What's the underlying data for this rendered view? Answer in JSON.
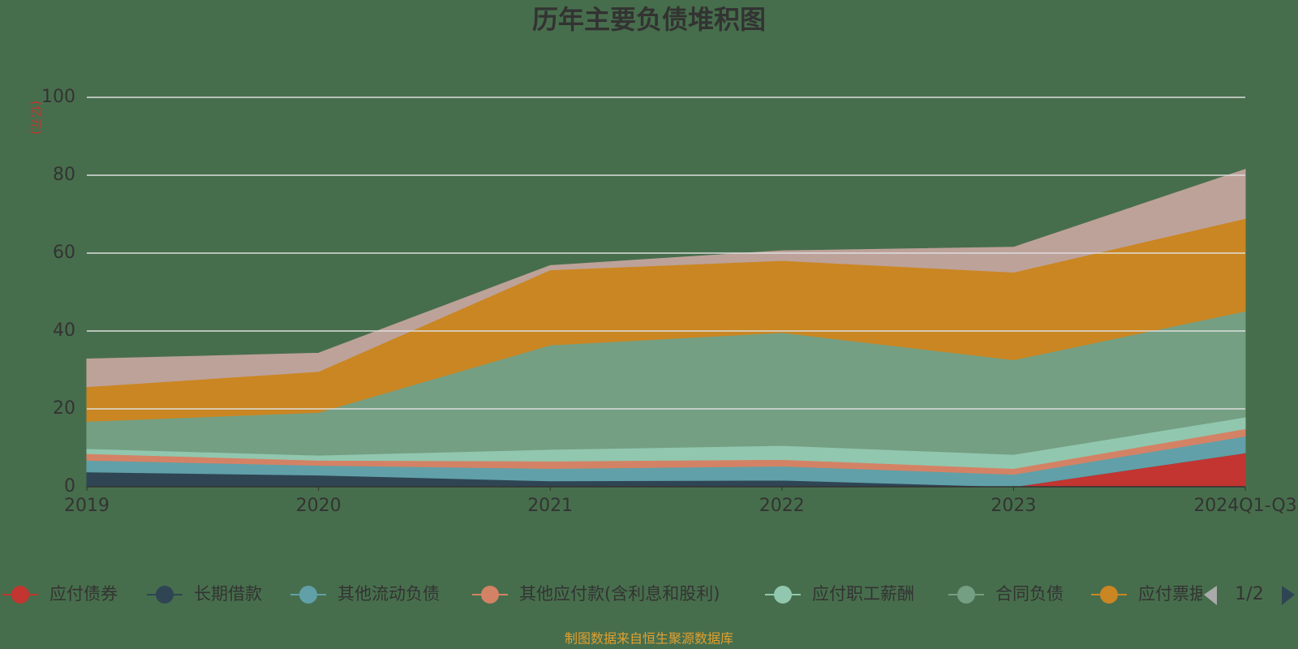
{
  "chart_data": {
    "type": "stacked_area",
    "title": "历年主要负债堆积图",
    "y_label": "(亿元)",
    "categories": [
      "2019",
      "2020",
      "2021",
      "2022",
      "2023",
      "2024Q1-Q3"
    ],
    "series": [
      {
        "name": "应付债券",
        "color": "#c23531",
        "values": [
          0,
          0,
          0,
          0,
          0,
          8.7
        ]
      },
      {
        "name": "长期借款",
        "color": "#2f4554",
        "values": [
          3.8,
          3.0,
          1.5,
          1.7,
          0,
          0
        ]
      },
      {
        "name": "其他流动负债",
        "color": "#61a0a8",
        "values": [
          3.0,
          2.5,
          3.2,
          3.6,
          3.2,
          4.3
        ]
      },
      {
        "name": "其他应付款(含利息和股利)",
        "color": "#d48265",
        "values": [
          1.7,
          1.3,
          1.9,
          1.7,
          1.5,
          1.9
        ]
      },
      {
        "name": "应付职工薪酬",
        "color": "#91c7ae",
        "values": [
          1.3,
          1.3,
          3.0,
          3.6,
          3.6,
          3.0
        ]
      },
      {
        "name": "合同负债",
        "color": "#749f83",
        "values": [
          7.0,
          11.0,
          26.8,
          29.0,
          24.3,
          27.2
        ]
      },
      {
        "name": "应付票据",
        "color": "#ca8622",
        "values": [
          8.9,
          10.5,
          19.3,
          18.5,
          22.5,
          23.8
        ]
      },
      {
        "color": "#bda29a",
        "values": [
          7.1,
          4.7,
          1.1,
          2.5,
          6.4,
          12.6
        ]
      }
    ],
    "ylim": [
      0,
      100
    ],
    "yticks": [
      0,
      20,
      40,
      60,
      80,
      100
    ],
    "grid": true,
    "legend_page": "1/2",
    "source": "制图数据来自恒生聚源数据库"
  }
}
